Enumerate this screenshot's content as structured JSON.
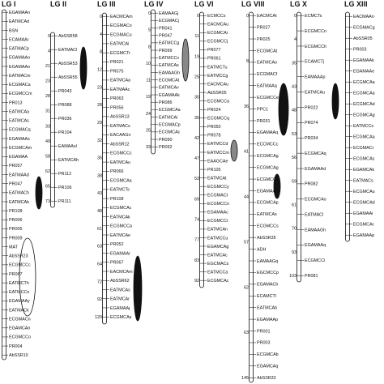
{
  "figure": {
    "background": "#ffffff",
    "line_color": "#111111"
  },
  "groups": [
    {
      "title": "LG I",
      "positions": [],
      "markers": [
        "EGAMAAn",
        "EATMCAd",
        "BSN",
        "ECAMAAr",
        "EATMACp",
        "EGAMAAo",
        "EGAMAAo",
        "EATMACm",
        "ECGMACa",
        "ECGMCCm",
        "PR013",
        "EATMCAa",
        "EATMCAs",
        "ECGMACq",
        "EGAMAAs",
        "ECGMCAm",
        "EGAMAA",
        "PR057",
        "EATMAAd",
        "PR047",
        "EATMACh",
        "EATMCAb",
        "PR108",
        "PR006",
        "PR005",
        "PR009",
        "MAT",
        "AbSSR23",
        "ECGMCCc",
        "PR067",
        "EATMCTh",
        "EATMCCn",
        "EGAMAAy",
        "EATMACk",
        "ECGMACn",
        "EGAMCAn",
        "ECGMCCo",
        "PR004",
        "AbSSR10"
      ]
    },
    {
      "title": "LG II",
      "positions": [
        "0",
        "4",
        "21",
        "23",
        "28",
        "31",
        "33",
        "49",
        "58",
        "62",
        "65",
        "73"
      ],
      "markers": [
        "AbSSR58",
        "EATMACl",
        "AbSSR53",
        "AbSSR55",
        "PR043",
        "PR088",
        "PR036",
        "PR104",
        "EAMAAsl",
        "EATMCAh",
        "PR112",
        "PR106",
        "PR111"
      ]
    },
    {
      "title": "LG III",
      "positions": [
        "0",
        "4",
        "8",
        "12",
        "23",
        "28",
        "29",
        "32",
        "35",
        "38",
        "43",
        "48",
        "61",
        "63",
        "64",
        "72",
        "92",
        "120"
      ],
      "markers": [
        "EACMCAm",
        "ECGMACo",
        "ECGMACu",
        "EATMCAi",
        "ECGMCTr",
        "PR021",
        "PR075",
        "EATMCAa",
        "EATMAAc",
        "PR063",
        "PR056",
        "AbSSR13",
        "EATMACs",
        "EACAAGn",
        "AbSSR12",
        "ECGMCCc",
        "EATMCAu",
        "PR066",
        "ECGMCAa",
        "EATMCTs",
        "PR108",
        "ECGMCAc",
        "EATMCAk",
        "ECGMCCa",
        "EATMCAe",
        "PR052",
        "EGAMAAr",
        "PR067",
        "EACMCAm",
        "AbSSR62",
        "EATMCAs",
        "EATMCAr",
        "EGAMAAj",
        "ECGMCAs"
      ]
    },
    {
      "title": "LG IV",
      "positions": [
        "0",
        "5",
        "8",
        "10",
        "11",
        "19",
        "24",
        "25",
        "33"
      ],
      "markers": [
        "EAMAAGj",
        "ECGMACj",
        "PR041",
        "PR047",
        "EATMCCg",
        "PR099",
        "EATMCCv",
        "EATMCAs",
        "EAMAAGh",
        "ECGMCAt",
        "EATMCAv",
        "EGAMAAk",
        "PR086",
        "ECGMCAa",
        "EATMCAi",
        "ECGMACp",
        "ECGMCAc",
        "PR090",
        "PR092"
      ]
    },
    {
      "title": "LG VI",
      "positions": [
        "0",
        "11",
        "19",
        "25",
        "30",
        "35",
        "42",
        "47",
        "53",
        "69",
        "74",
        "77",
        "83",
        "92"
      ],
      "markers": [
        "ECMCCs",
        "EACMCAu",
        "ECGMCAi",
        "ECGMCCj",
        "PR077",
        "PR061",
        "EATMCTu",
        "EATMCCg",
        "EACMCAu",
        "AbSSR05",
        "ECGMCCa",
        "PR024",
        "ECGMCCq",
        "PR050",
        "PR078",
        "EATMCCd",
        "EATMCCm",
        "EAAGCAe",
        "PR105",
        "EATMCAt",
        "ECGMCCy",
        "ECGMACt",
        "ECGMCCn",
        "EGAMAAc",
        "ECGMCCr",
        "EATMCAn",
        "EATMCCu",
        "EGAMCAg",
        "EATMCAc",
        "EGCMACs",
        "EATMCCa",
        "ECGMCAc"
      ]
    },
    {
      "title": "LG VIII",
      "positions": [
        "0",
        "8",
        "36",
        "41",
        "44",
        "57",
        "62",
        "63",
        "145"
      ],
      "markers": [
        "EACMCAt",
        "PR027",
        "PR025",
        "ECGMCAt",
        "EATMCAo",
        "ECGMACf",
        "EATMAAq",
        "ECGMCCe",
        "PPC1",
        "PR031",
        "EGAMAAq",
        "ECCMCCc",
        "ECGMCAg",
        "ECGMCAg",
        "ECGMCCq",
        "EGAMAAg",
        "ECGMCAp",
        "EATMCAs",
        "ECGMCCs",
        "AbSSR35",
        "ADH",
        "EAMAAGq",
        "EGCMCCp",
        "EGAMACh",
        "ECAMCTl",
        "EATMCAb",
        "EGAMAAp",
        "PR001",
        "PR003",
        "ECGMCAb",
        "EGAMCAq",
        "AbSSR32"
      ]
    },
    {
      "title": "LG X",
      "positions": [
        "0",
        "4",
        "35",
        "43",
        "48",
        "53",
        "56",
        "59",
        "61",
        "70",
        "93",
        "103"
      ],
      "markers": [
        "ECMCTs",
        "ECGMCCn",
        "ECGMCCh",
        "ECAMCTj",
        "EAMAAAp",
        "EATMCAu",
        "PR022",
        "PR074",
        "PR034",
        "ECGMCAq",
        "EGAMAAd",
        "PR082",
        "ECGMCAo",
        "EATMACl",
        "EAMAAGh",
        "EGAMAAq",
        "ECGMCCi",
        "PR081"
      ]
    },
    {
      "title": "LG XIII",
      "positions": [],
      "markers": [
        "EACMAAn",
        "ECGMACg",
        "AbSSR05",
        "PR003",
        "EGAMAAk",
        "EGAMAAe",
        "ECGMCAa",
        "ECGMCAa",
        "ECGMCAd",
        "ECGMCAg",
        "EATMCCs",
        "ECGMCAa",
        "ECGMACr",
        "ECGMCAs",
        "EGAMCAk",
        "EATMACs",
        "ECGMCAu",
        "ECGMCAd",
        "EGAMAAi",
        "ECGMCAr",
        "EGAMAAp"
      ]
    }
  ]
}
